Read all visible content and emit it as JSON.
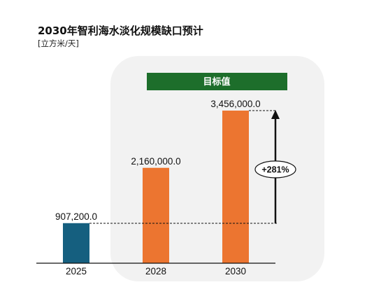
{
  "chart_data": {
    "type": "bar",
    "title": "2030年智利海水淡化规模缺口预计",
    "unit": "[立方米/天]",
    "categories": [
      "2025",
      "2028",
      "2030"
    ],
    "values": [
      907200.0,
      2160000.0,
      3456000.0
    ],
    "value_labels": [
      "907,200.0",
      "2,160,000.0",
      "3,456,000.0"
    ],
    "bar_colors": [
      "#155f7f",
      "#ec7530",
      "#ec7530"
    ],
    "target_box_label": "目标值",
    "target_box_color": "#1d6e2b",
    "growth_annotation": "+281%",
    "ylim": [
      0,
      3456000.0
    ],
    "grid": false
  }
}
